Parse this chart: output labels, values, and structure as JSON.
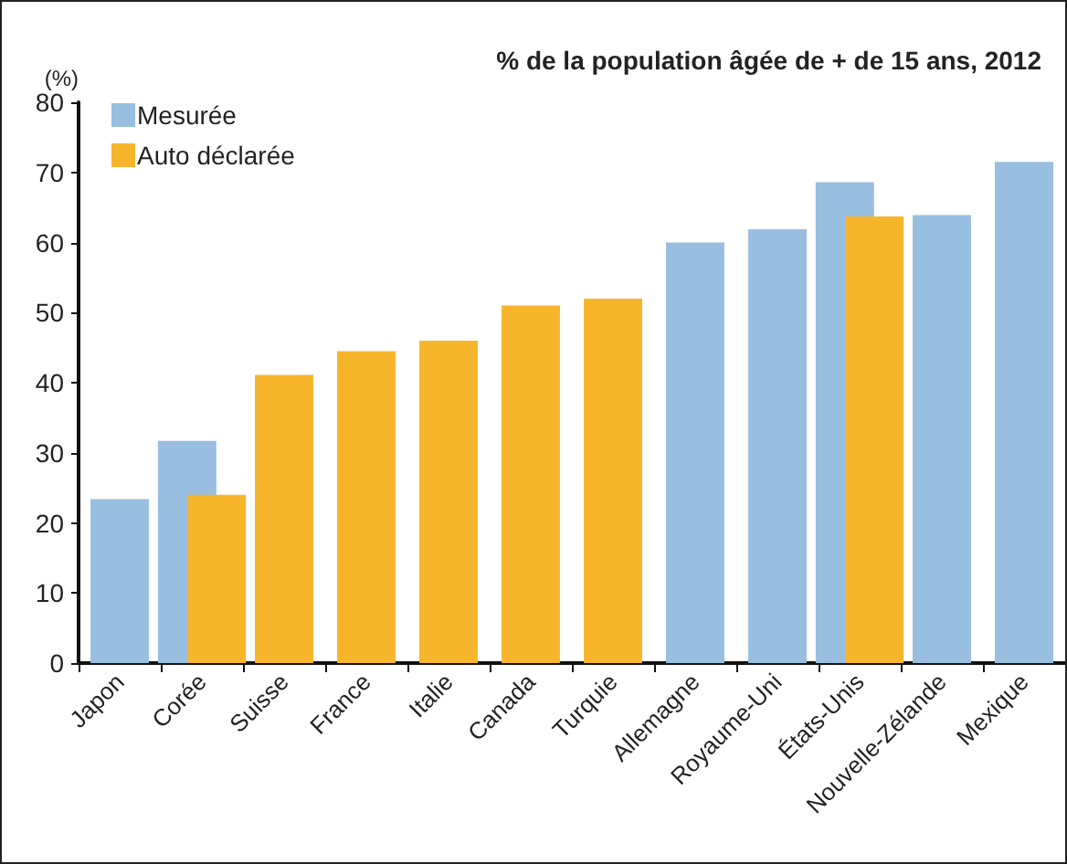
{
  "chart_data": {
    "type": "bar",
    "title": "% de la population âgée de + de 15 ans, 2012",
    "ylabel": "(%)",
    "categories": [
      "Japon",
      "Corée",
      "Suisse",
      "France",
      "Italie",
      "Canada",
      "Turquie",
      "Allemagne",
      "Royaume-Uni",
      "États-Unis",
      "Nouvelle-Zélande",
      "Mexique"
    ],
    "series": [
      {
        "name": "Mesurée",
        "color": "#98bee0",
        "values": [
          23.4,
          31.7,
          null,
          null,
          null,
          null,
          null,
          60.0,
          61.9,
          68.6,
          63.9,
          71.5
        ]
      },
      {
        "name": "Auto déclarée",
        "color": "#f7b52c",
        "values": [
          null,
          24.0,
          41.1,
          44.5,
          46.0,
          51.0,
          52.0,
          null,
          null,
          63.7,
          null,
          null
        ]
      }
    ],
    "ylim": [
      0,
      80
    ],
    "yticks": [
      0,
      10,
      20,
      30,
      40,
      50,
      60,
      70,
      80
    ],
    "grid": false,
    "legend": "top left"
  }
}
